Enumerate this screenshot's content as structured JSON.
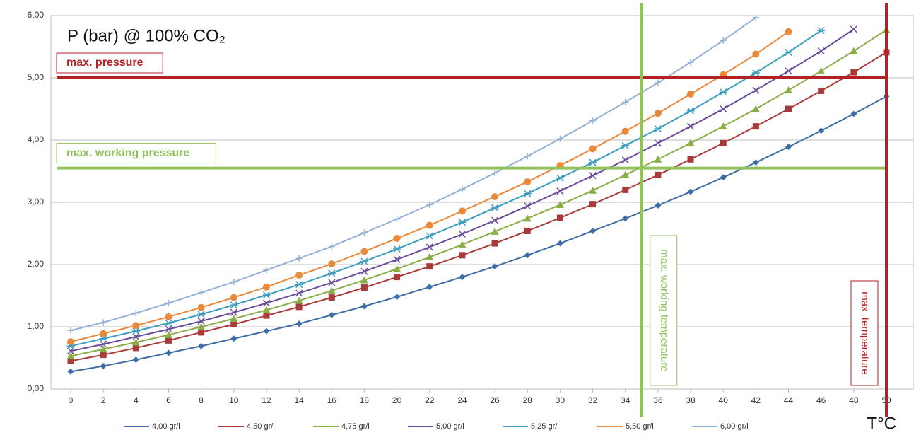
{
  "chart_data": {
    "type": "line",
    "title": "P (bar) @ 100% CO₂",
    "x_label": "T°C",
    "x": [
      0,
      2,
      4,
      6,
      8,
      10,
      12,
      14,
      16,
      18,
      20,
      22,
      24,
      26,
      28,
      30,
      32,
      34,
      36,
      38,
      40,
      42,
      44,
      46,
      48,
      50
    ],
    "xlim": [
      0,
      50
    ],
    "xticks": [
      0,
      2,
      4,
      6,
      8,
      10,
      12,
      14,
      16,
      18,
      20,
      22,
      24,
      26,
      28,
      30,
      32,
      34,
      36,
      38,
      40,
      42,
      44,
      46,
      48,
      50
    ],
    "ylim": [
      0,
      6
    ],
    "yticks": [
      {
        "value": 0,
        "label": "0,00"
      },
      {
        "value": 1,
        "label": "1,00"
      },
      {
        "value": 2,
        "label": "2,00"
      },
      {
        "value": 3,
        "label": "3,00"
      },
      {
        "value": 4,
        "label": "4,00"
      },
      {
        "value": 5,
        "label": "5,00"
      },
      {
        "value": 6,
        "label": "6,00"
      }
    ],
    "grid": true,
    "legend": "bottom",
    "series": [
      {
        "name": "4,00 gr/l",
        "color": "#3e6da6",
        "marker": "diamond",
        "values": [
          0.28,
          0.37,
          0.47,
          0.58,
          0.69,
          0.81,
          0.93,
          1.05,
          1.19,
          1.33,
          1.48,
          1.64,
          1.8,
          1.97,
          2.15,
          2.34,
          2.54,
          2.74,
          2.95,
          3.17,
          3.4,
          3.64,
          3.89,
          4.15,
          4.42,
          4.7
        ]
      },
      {
        "name": "4,50 gr/l",
        "color": "#a93b3b",
        "marker": "square",
        "values": [
          0.45,
          0.55,
          0.66,
          0.78,
          0.91,
          1.04,
          1.18,
          1.32,
          1.47,
          1.63,
          1.8,
          1.97,
          2.15,
          2.34,
          2.54,
          2.75,
          2.97,
          3.2,
          3.44,
          3.69,
          3.95,
          4.22,
          4.5,
          4.79,
          5.09,
          5.41
        ]
      },
      {
        "name": "4,75 gr/l",
        "color": "#8bad47",
        "marker": "triangle",
        "values": [
          0.53,
          0.64,
          0.75,
          0.87,
          1.0,
          1.13,
          1.27,
          1.42,
          1.58,
          1.75,
          1.93,
          2.12,
          2.32,
          2.53,
          2.74,
          2.96,
          3.19,
          3.44,
          3.69,
          3.95,
          4.22,
          4.5,
          4.8,
          5.11,
          5.43,
          5.77
        ]
      },
      {
        "name": "5,00 gr/l",
        "color": "#6a4c98",
        "marker": "x",
        "values": [
          0.61,
          0.72,
          0.84,
          0.96,
          1.09,
          1.23,
          1.38,
          1.54,
          1.71,
          1.89,
          2.08,
          2.28,
          2.49,
          2.71,
          2.94,
          3.18,
          3.43,
          3.68,
          3.95,
          4.22,
          4.5,
          4.8,
          5.11,
          5.43,
          5.78,
          null
        ]
      },
      {
        "name": "5,25 gr/l",
        "color": "#3c9dc0",
        "marker": "star",
        "values": [
          0.69,
          0.81,
          0.93,
          1.06,
          1.2,
          1.35,
          1.51,
          1.68,
          1.86,
          2.05,
          2.25,
          2.46,
          2.68,
          2.91,
          3.14,
          3.39,
          3.64,
          3.91,
          4.18,
          4.47,
          4.77,
          5.08,
          5.41,
          5.76,
          null,
          null
        ]
      },
      {
        "name": "5,50 gr/l",
        "color": "#e8893c",
        "marker": "circle",
        "values": [
          0.76,
          0.89,
          1.02,
          1.16,
          1.31,
          1.47,
          1.64,
          1.83,
          2.01,
          2.21,
          2.42,
          2.63,
          2.86,
          3.09,
          3.33,
          3.59,
          3.86,
          4.14,
          4.43,
          4.74,
          5.05,
          5.38,
          5.74,
          null,
          null,
          null
        ]
      },
      {
        "name": "6,00 gr/l",
        "color": "#95b0d6",
        "marker": "plus",
        "values": [
          0.94,
          1.07,
          1.22,
          1.38,
          1.55,
          1.72,
          1.91,
          2.1,
          2.29,
          2.51,
          2.73,
          2.96,
          3.21,
          3.47,
          3.74,
          4.02,
          4.31,
          4.61,
          4.92,
          5.25,
          5.6,
          5.97,
          null,
          null,
          null,
          null
        ]
      }
    ],
    "annotations": [
      {
        "label": "max. pressure",
        "axis": "y",
        "value": 5,
        "color": "#b22222"
      },
      {
        "label": "max. working pressure",
        "axis": "y",
        "value": 3.55,
        "color": "#92c25a"
      },
      {
        "label": "max. working temperature",
        "axis": "x",
        "value": 35,
        "color": "#92c25a"
      },
      {
        "label": "max. temperature",
        "axis": "x",
        "value": 50,
        "color": "#b22222"
      }
    ]
  }
}
